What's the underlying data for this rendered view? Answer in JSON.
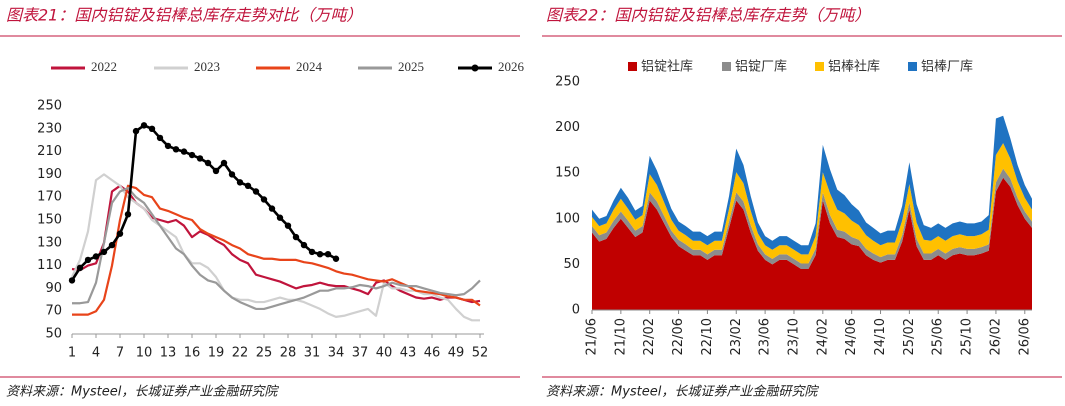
{
  "chart_data": [
    {
      "type": "line",
      "title": "图表21：国内铝锭及铝棒总库存走势对比（万吨）",
      "source": "资料来源：Mysteel，长城证券产业金融研究院",
      "x": [
        1,
        2,
        3,
        4,
        5,
        6,
        7,
        8,
        9,
        10,
        11,
        12,
        13,
        14,
        15,
        16,
        17,
        18,
        19,
        20,
        21,
        22,
        23,
        24,
        25,
        26,
        27,
        28,
        29,
        30,
        31,
        32,
        33,
        34,
        35,
        36,
        37,
        38,
        39,
        40,
        41,
        42,
        43,
        44,
        45,
        46,
        47,
        48,
        49,
        50,
        51,
        52
      ],
      "xlim": [
        1,
        52
      ],
      "xticks": [
        1,
        4,
        7,
        10,
        13,
        16,
        19,
        22,
        25,
        28,
        31,
        34,
        37,
        40,
        43,
        46,
        49,
        52
      ],
      "ylim": [
        50,
        250
      ],
      "yticks": [
        50,
        70,
        90,
        110,
        130,
        150,
        170,
        190,
        210,
        230,
        250
      ],
      "series": [
        {
          "name": "2022",
          "color": "#c0143c",
          "values": [
            107,
            106,
            110,
            112,
            130,
            175,
            180,
            175,
            165,
            160,
            152,
            150,
            148,
            150,
            145,
            135,
            140,
            137,
            132,
            128,
            120,
            115,
            112,
            102,
            100,
            98,
            96,
            93,
            90,
            92,
            93,
            95,
            93,
            92,
            92,
            90,
            88,
            85,
            95,
            97,
            92,
            88,
            85,
            82,
            81,
            82,
            80,
            82,
            82,
            80,
            78,
            79
          ]
        },
        {
          "name": "2023",
          "color": "#d0d0d0",
          "values": [
            100,
            115,
            140,
            185,
            190,
            185,
            180,
            170,
            165,
            160,
            150,
            145,
            140,
            135,
            120,
            112,
            112,
            108,
            100,
            88,
            82,
            80,
            80,
            78,
            78,
            80,
            82,
            80,
            80,
            78,
            75,
            72,
            68,
            65,
            66,
            68,
            70,
            72,
            66,
            95,
            90,
            90,
            88,
            88,
            85,
            85,
            82,
            80,
            72,
            65,
            62,
            62
          ]
        },
        {
          "name": "2024",
          "color": "#e8441a",
          "values": [
            67,
            67,
            67,
            70,
            80,
            110,
            150,
            180,
            178,
            172,
            170,
            160,
            158,
            155,
            152,
            150,
            142,
            138,
            135,
            132,
            128,
            125,
            120,
            118,
            116,
            116,
            115,
            115,
            115,
            113,
            112,
            110,
            108,
            105,
            103,
            102,
            100,
            98,
            97,
            96,
            98,
            95,
            92,
            88,
            87,
            86,
            85,
            83,
            82,
            80,
            80,
            75
          ]
        },
        {
          "name": "2025",
          "color": "#999999",
          "values": [
            77,
            77,
            78,
            95,
            130,
            165,
            175,
            178,
            170,
            165,
            155,
            145,
            135,
            125,
            120,
            110,
            102,
            97,
            95,
            88,
            82,
            78,
            75,
            72,
            72,
            74,
            76,
            78,
            80,
            82,
            85,
            88,
            88,
            90,
            90,
            91,
            93,
            92,
            90,
            92,
            95,
            93,
            92,
            92,
            90,
            88,
            86,
            85,
            84,
            85,
            90,
            97
          ]
        },
        {
          "name": "2026",
          "color": "#000000",
          "marker": "circle",
          "values": [
            97,
            108,
            115,
            118,
            122,
            128,
            138,
            155,
            228,
            233,
            230,
            222,
            215,
            212,
            210,
            207,
            204,
            200,
            193,
            200,
            190,
            183,
            180,
            175,
            168,
            160,
            152,
            145,
            135,
            128,
            122,
            120,
            120,
            116,
            null,
            null,
            null,
            null,
            null,
            null,
            null,
            null,
            null,
            null,
            null,
            null,
            null,
            null,
            null,
            null,
            null,
            null
          ]
        }
      ]
    },
    {
      "type": "stacked_area",
      "title": "图表22：国内铝锭及铝棒总库存走势（万吨）",
      "source": "资料来源：Mysteel，长城证券产业金融研究院",
      "categories": [
        "21/06",
        null,
        null,
        null,
        "21/10",
        null,
        null,
        null,
        "22/02",
        null,
        null,
        null,
        "22/06",
        null,
        null,
        null,
        "22/10",
        null,
        null,
        null,
        "23/02",
        null,
        null,
        null,
        "23/06",
        null,
        null,
        null,
        "23/10",
        null,
        null,
        null,
        "24/02",
        null,
        null,
        null,
        "24/06",
        null,
        null,
        null,
        "24/10",
        null,
        null,
        null,
        "25/02",
        null,
        null,
        null,
        "25/06",
        null,
        null,
        null,
        "25/10",
        null,
        null,
        null,
        "26/02",
        null,
        null,
        null,
        "26/06",
        null
      ],
      "ylim": [
        0,
        250
      ],
      "yticks": [
        0,
        50,
        100,
        150,
        200,
        250
      ],
      "series": [
        {
          "name": "铝锭社库",
          "color": "#c00000",
          "values": [
            85,
            75,
            78,
            90,
            100,
            90,
            80,
            85,
            120,
            110,
            95,
            80,
            70,
            65,
            60,
            60,
            55,
            60,
            60,
            90,
            120,
            110,
            85,
            65,
            55,
            50,
            55,
            55,
            50,
            45,
            45,
            60,
            120,
            95,
            80,
            78,
            72,
            70,
            60,
            55,
            52,
            55,
            55,
            75,
            110,
            70,
            55,
            55,
            60,
            55,
            60,
            62,
            60,
            60,
            62,
            65,
            130,
            145,
            135,
            115,
            100,
            90
          ]
        },
        {
          "name": "铝锭厂库",
          "color": "#8c8c8c",
          "values": [
            7,
            7,
            7,
            8,
            8,
            8,
            7,
            7,
            9,
            9,
            8,
            7,
            7,
            7,
            6,
            6,
            6,
            6,
            6,
            7,
            9,
            9,
            8,
            7,
            6,
            6,
            6,
            6,
            6,
            6,
            6,
            7,
            9,
            9,
            8,
            8,
            8,
            7,
            7,
            7,
            6,
            6,
            6,
            7,
            8,
            8,
            7,
            7,
            7,
            7,
            7,
            7,
            7,
            7,
            7,
            7,
            10,
            10,
            9,
            8,
            8,
            7
          ]
        },
        {
          "name": "铝棒社库",
          "color": "#ffc000",
          "values": [
            10,
            10,
            10,
            12,
            14,
            13,
            12,
            12,
            20,
            18,
            15,
            12,
            10,
            10,
            10,
            10,
            10,
            10,
            10,
            14,
            22,
            20,
            16,
            12,
            10,
            10,
            10,
            10,
            10,
            10,
            10,
            14,
            22,
            24,
            22,
            20,
            18,
            16,
            15,
            14,
            13,
            13,
            13,
            16,
            20,
            18,
            15,
            14,
            14,
            14,
            14,
            14,
            14,
            14,
            14,
            16,
            30,
            28,
            22,
            18,
            15,
            13
          ]
        },
        {
          "name": "铝棒厂库",
          "color": "#1f73c2",
          "values": [
            8,
            8,
            8,
            10,
            12,
            12,
            10,
            10,
            20,
            16,
            14,
            12,
            10,
            10,
            10,
            10,
            10,
            10,
            10,
            14,
            26,
            20,
            16,
            12,
            10,
            10,
            10,
            10,
            10,
            10,
            10,
            14,
            30,
            26,
            22,
            20,
            18,
            16,
            14,
            14,
            13,
            13,
            13,
            16,
            24,
            20,
            16,
            14,
            14,
            14,
            14,
            14,
            14,
            14,
            14,
            16,
            40,
            30,
            22,
            18,
            14,
            12
          ]
        }
      ]
    }
  ]
}
